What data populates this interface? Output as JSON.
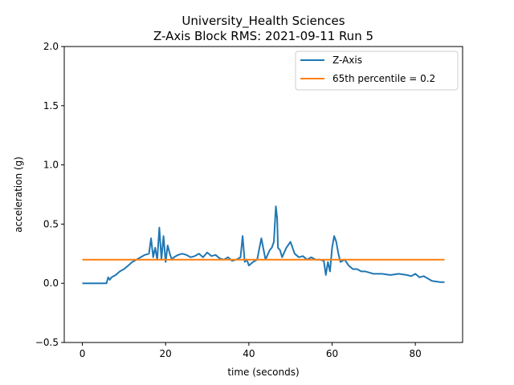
{
  "chart_data": {
    "type": "line",
    "title": [
      "University_Health Sciences",
      "Z-Axis Block RMS: 2021-09-11 Run 5"
    ],
    "xlabel": "time (seconds)",
    "ylabel": "acceleration (g)",
    "xlim": [
      -4.35,
      91.35
    ],
    "ylim": [
      -0.5,
      2.0
    ],
    "xticks": [
      0,
      20,
      40,
      60,
      80
    ],
    "yticks": [
      -0.5,
      0.0,
      0.5,
      1.0,
      1.5,
      2.0
    ],
    "ytick_labels": [
      "−0.5",
      "0.0",
      "0.5",
      "1.0",
      "1.5",
      "2.0"
    ],
    "grid": false,
    "legend_position": "top-right",
    "series": [
      {
        "name": "Z-Axis",
        "color": "#1f77b4",
        "x": [
          0,
          2,
          4,
          5.8,
          6.2,
          6.6,
          7,
          8,
          9,
          10,
          11,
          12,
          13,
          14,
          15,
          16,
          16.5,
          17,
          17.5,
          18,
          18.5,
          19,
          19.5,
          20,
          20.5,
          21,
          21.5,
          22,
          23,
          24,
          25,
          26,
          27,
          28,
          29,
          30,
          31,
          32,
          33,
          34,
          35,
          36,
          37,
          38,
          38.5,
          39,
          39.5,
          40,
          41,
          42,
          43,
          44,
          45,
          45.5,
          46,
          46.5,
          46.8,
          47,
          47.5,
          48,
          49,
          50,
          51,
          52,
          53,
          54,
          55,
          56,
          57,
          58,
          58.5,
          59,
          59.5,
          60,
          60.5,
          61,
          61.5,
          62,
          63,
          64,
          65,
          66,
          67,
          68,
          70,
          72,
          74,
          76,
          78,
          79,
          80,
          81,
          82,
          84,
          86,
          87
        ],
        "y": [
          0.0,
          0.0,
          0.0,
          0.0,
          0.05,
          0.03,
          0.05,
          0.07,
          0.1,
          0.12,
          0.15,
          0.18,
          0.2,
          0.22,
          0.24,
          0.25,
          0.38,
          0.22,
          0.3,
          0.2,
          0.47,
          0.2,
          0.4,
          0.18,
          0.32,
          0.25,
          0.2,
          0.22,
          0.24,
          0.25,
          0.24,
          0.22,
          0.23,
          0.25,
          0.22,
          0.26,
          0.23,
          0.24,
          0.21,
          0.2,
          0.22,
          0.19,
          0.2,
          0.22,
          0.4,
          0.18,
          0.2,
          0.15,
          0.18,
          0.2,
          0.38,
          0.2,
          0.28,
          0.3,
          0.35,
          0.65,
          0.55,
          0.3,
          0.28,
          0.22,
          0.3,
          0.35,
          0.25,
          0.22,
          0.23,
          0.2,
          0.22,
          0.2,
          0.2,
          0.19,
          0.07,
          0.18,
          0.1,
          0.3,
          0.4,
          0.35,
          0.25,
          0.18,
          0.2,
          0.15,
          0.12,
          0.12,
          0.1,
          0.1,
          0.08,
          0.08,
          0.07,
          0.08,
          0.07,
          0.06,
          0.08,
          0.05,
          0.06,
          0.02,
          0.01,
          0.01
        ]
      },
      {
        "name": "65th percentile = 0.2",
        "color": "#ff7f0e",
        "x": [
          0,
          87
        ],
        "y": [
          0.2,
          0.2
        ]
      }
    ]
  }
}
